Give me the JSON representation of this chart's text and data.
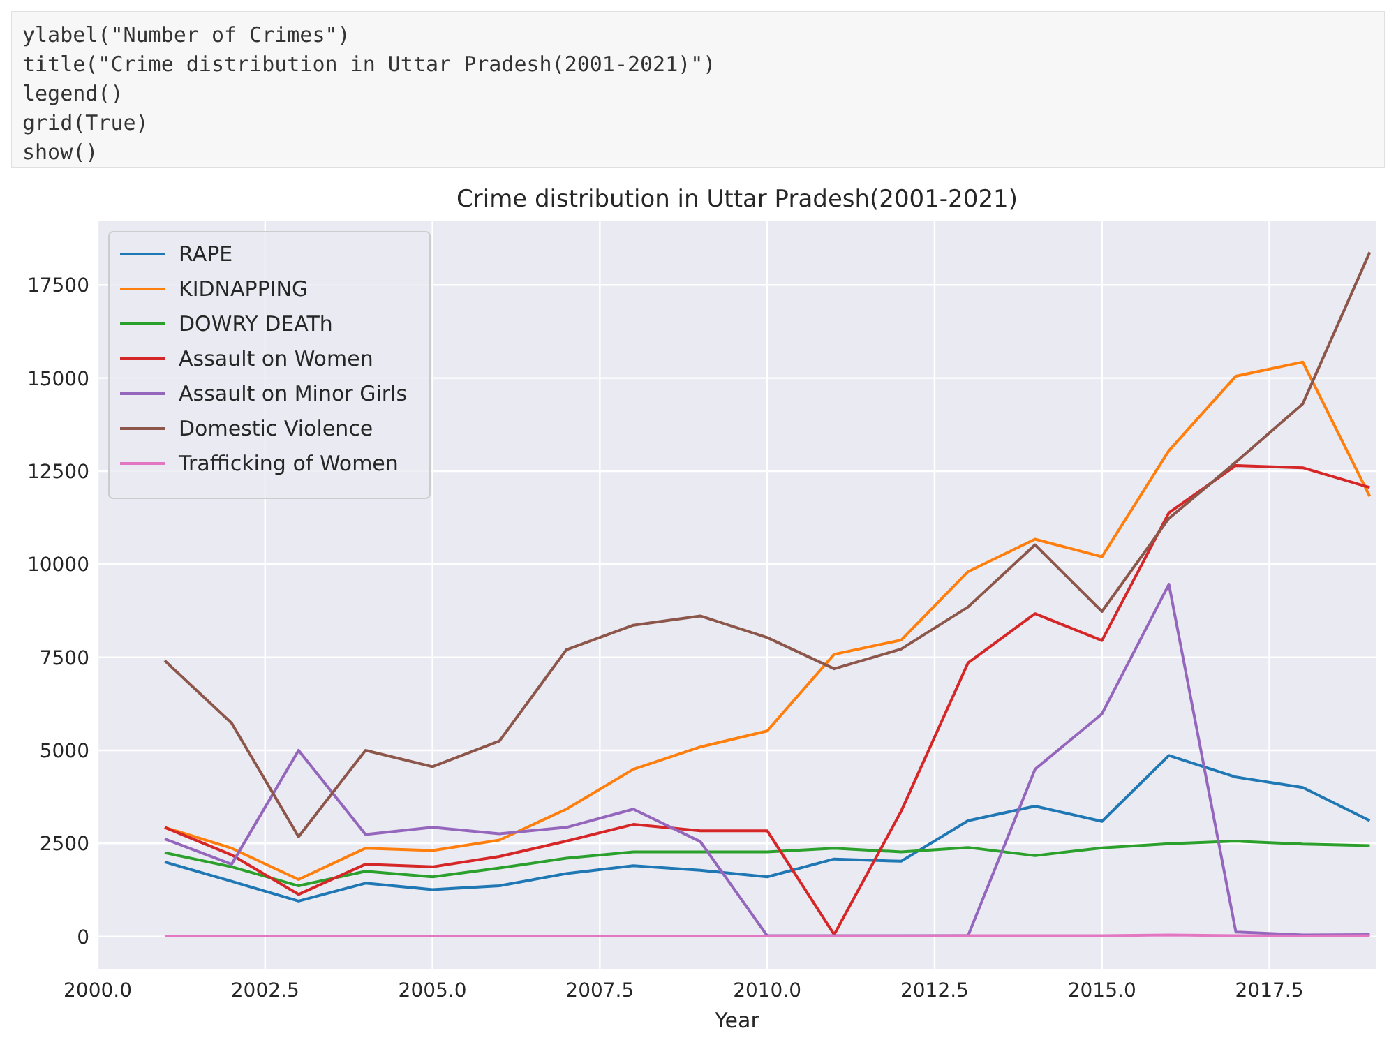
{
  "chart_data": {
    "type": "line",
    "title": "Crime distribution in Uttar Pradesh(2001-2021)",
    "xlabel": "Year",
    "annotations": [
      "ylabel(\"Number of Crimes\")",
      "title(\"Crime distribution in Uttar Pradesh(2001-2021)\")",
      "legend()",
      "grid(True)",
      "show()"
    ],
    "x": [
      2001,
      2002,
      2003,
      2004,
      2005,
      2006,
      2007,
      2008,
      2009,
      2010,
      2011,
      2012,
      2013,
      2014,
      2015,
      2016,
      2017,
      2018,
      2019
    ],
    "series": [
      {
        "name": "RAPE",
        "color": "#1f77b4",
        "values": [
          2000,
          1480,
          950,
          1430,
          1260,
          1360,
          1690,
          1900,
          1780,
          1600,
          2080,
          2020,
          3110,
          3500,
          3090,
          4860,
          4280,
          4000,
          3110
        ]
      },
      {
        "name": "KIDNAPPING",
        "color": "#ff7f0e",
        "values": [
          2930,
          2370,
          1530,
          2370,
          2310,
          2590,
          3420,
          4490,
          5090,
          5520,
          7580,
          7960,
          9800,
          10670,
          10200,
          13050,
          15050,
          15430,
          11820
        ]
      },
      {
        "name": "DOWRY DEATh",
        "color": "#2ca02c",
        "values": [
          2250,
          1870,
          1360,
          1750,
          1600,
          1840,
          2100,
          2270,
          2270,
          2270,
          2370,
          2270,
          2390,
          2170,
          2380,
          2490,
          2560,
          2480,
          2440
        ]
      },
      {
        "name": "Assault on Women",
        "color": "#d62728",
        "values": [
          2930,
          2190,
          1130,
          1940,
          1870,
          2150,
          2560,
          3010,
          2840,
          2840,
          50,
          3360,
          7350,
          8670,
          7950,
          11380,
          12650,
          12590,
          12060
        ]
      },
      {
        "name": "Assault on Minor Girls",
        "color": "#9467bd",
        "values": [
          2620,
          1940,
          5000,
          2740,
          2930,
          2760,
          2930,
          3420,
          2550,
          20,
          20,
          20,
          20,
          4490,
          5980,
          9460,
          120,
          40,
          50
        ]
      },
      {
        "name": "Domestic Violence",
        "color": "#8c564b",
        "values": [
          7410,
          5730,
          2680,
          5000,
          4560,
          5250,
          7700,
          8360,
          8610,
          8030,
          7190,
          7720,
          8850,
          10520,
          8730,
          11230,
          12740,
          14310,
          18380
        ]
      },
      {
        "name": "Trafficking of Women",
        "color": "#e377c2",
        "values": [
          10,
          10,
          10,
          10,
          10,
          10,
          10,
          10,
          10,
          10,
          10,
          10,
          20,
          20,
          20,
          40,
          20,
          10,
          20
        ]
      }
    ],
    "xlim": [
      2000,
      2019.1
    ],
    "ylim": [
      -870,
      19230
    ],
    "xticks": [
      {
        "value": 2000,
        "label": "2000.0"
      },
      {
        "value": 2002.5,
        "label": "2002.5"
      },
      {
        "value": 2005,
        "label": "2005.0"
      },
      {
        "value": 2007.5,
        "label": "2007.5"
      },
      {
        "value": 2010,
        "label": "2010.0"
      },
      {
        "value": 2012.5,
        "label": "2012.5"
      },
      {
        "value": 2015,
        "label": "2015.0"
      },
      {
        "value": 2017.5,
        "label": "2017.5"
      }
    ],
    "yticks": [
      0,
      2500,
      5000,
      7500,
      10000,
      12500,
      15000,
      17500
    ],
    "grid": true,
    "legend": "top left"
  }
}
